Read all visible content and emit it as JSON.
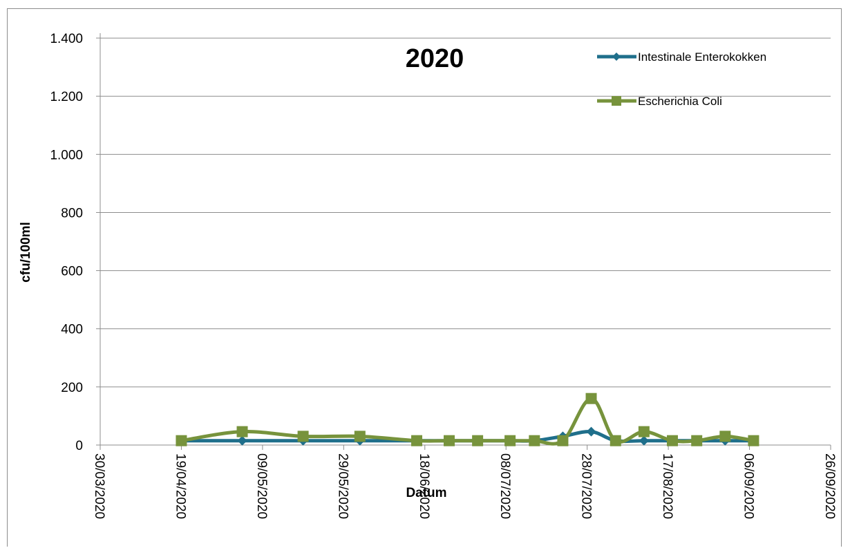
{
  "chart_data": {
    "type": "line",
    "title": "2020",
    "xlabel": "Datum",
    "ylabel": "cfu/100ml",
    "ylim": [
      0,
      1500
    ],
    "y_ticks": [
      0,
      200,
      400,
      600,
      800,
      1000,
      1200,
      1400
    ],
    "y_tick_labels": [
      "0",
      "200",
      "400",
      "600",
      "800",
      "1.000",
      "1.200",
      "1.400"
    ],
    "xlim": [
      "2020-03-30",
      "2020-09-26"
    ],
    "x_ticks": [
      "2020-03-30",
      "2020-04-19",
      "2020-05-09",
      "2020-05-29",
      "2020-06-18",
      "2020-07-08",
      "2020-07-28",
      "2020-08-17",
      "2020-09-06",
      "2020-09-26"
    ],
    "x_tick_labels": [
      "30/03/2020",
      "19/04/2020",
      "09/05/2020",
      "29/05/2020",
      "18/06/2020",
      "08/07/2020",
      "28/07/2020",
      "17/08/2020",
      "06/09/2020",
      "26/09/2020"
    ],
    "grid": "horizontal",
    "legend_position": "top-right",
    "series": [
      {
        "name": "Intestinale Enterokokken",
        "color": "#1f6f8b",
        "marker": "diamond",
        "x": [
          "2020-04-19",
          "2020-05-04",
          "2020-05-19",
          "2020-06-02",
          "2020-06-16",
          "2020-06-24",
          "2020-07-01",
          "2020-07-09",
          "2020-07-15",
          "2020-07-22",
          "2020-07-29",
          "2020-08-04",
          "2020-08-11",
          "2020-08-18",
          "2020-08-24",
          "2020-08-31",
          "2020-09-07"
        ],
        "y": [
          15,
          15,
          15,
          15,
          15,
          15,
          15,
          15,
          15,
          30,
          46,
          15,
          15,
          15,
          15,
          15,
          15
        ]
      },
      {
        "name": "Escherichia Coli",
        "color": "#77933c",
        "marker": "square",
        "x": [
          "2020-04-19",
          "2020-05-04",
          "2020-05-19",
          "2020-06-02",
          "2020-06-16",
          "2020-06-24",
          "2020-07-01",
          "2020-07-09",
          "2020-07-15",
          "2020-07-22",
          "2020-07-29",
          "2020-08-04",
          "2020-08-11",
          "2020-08-18",
          "2020-08-24",
          "2020-08-31",
          "2020-09-07"
        ],
        "y": [
          15,
          46,
          30,
          30,
          15,
          15,
          15,
          15,
          15,
          15,
          160,
          15,
          46,
          15,
          15,
          30,
          15
        ]
      }
    ]
  }
}
